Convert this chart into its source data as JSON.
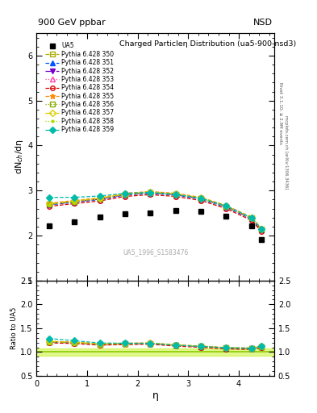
{
  "title_left": "900 GeV ppbar",
  "title_right": "NSD",
  "plot_title": "Charged Particleη Distribution",
  "plot_subtitle": "(ua5-900-nsd3)",
  "watermark": "UA5_1996_S1583476",
  "right_label1": "Rivet 3.1.10; ≥ 2.9M events",
  "right_label2": "mcplots.cern.ch [arXiv:1306.3436]",
  "xlabel": "η",
  "ylabel_main": "dN$_{ch}$/dη",
  "ylabel_ratio": "Ratio to UA5",
  "xlim": [
    0,
    4.7
  ],
  "ylim_main": [
    1.0,
    6.5
  ],
  "ylim_ratio": [
    0.5,
    2.5
  ],
  "yticks_main": [
    1,
    2,
    3,
    4,
    5,
    6
  ],
  "yticks_ratio": [
    0.5,
    1.0,
    1.5,
    2.0,
    2.5
  ],
  "ua5_x": [
    0.25,
    0.75,
    1.25,
    1.75,
    2.25,
    2.75,
    3.25,
    3.75,
    4.25,
    4.45
  ],
  "ua5_y": [
    2.22,
    2.3,
    2.42,
    2.48,
    2.5,
    2.55,
    2.53,
    2.44,
    2.22,
    1.92
  ],
  "pythia_x": [
    0.25,
    0.75,
    1.25,
    1.75,
    2.25,
    2.75,
    3.25,
    3.75,
    4.25,
    4.45
  ],
  "pythia_350_y": [
    2.7,
    2.76,
    2.82,
    2.91,
    2.95,
    2.91,
    2.82,
    2.65,
    2.38,
    2.13
  ],
  "pythia_351_y": [
    2.68,
    2.74,
    2.8,
    2.9,
    2.94,
    2.9,
    2.81,
    2.63,
    2.37,
    2.12
  ],
  "pythia_352_y": [
    2.69,
    2.75,
    2.81,
    2.91,
    2.95,
    2.91,
    2.82,
    2.64,
    2.38,
    2.13
  ],
  "pythia_353_y": [
    2.7,
    2.76,
    2.82,
    2.92,
    2.96,
    2.92,
    2.83,
    2.65,
    2.39,
    2.14
  ],
  "pythia_354_y": [
    2.65,
    2.71,
    2.77,
    2.87,
    2.91,
    2.87,
    2.78,
    2.6,
    2.34,
    2.09
  ],
  "pythia_355_y": [
    2.72,
    2.78,
    2.84,
    2.94,
    2.98,
    2.94,
    2.85,
    2.67,
    2.41,
    2.16
  ],
  "pythia_356_y": [
    2.7,
    2.76,
    2.82,
    2.92,
    2.96,
    2.92,
    2.83,
    2.65,
    2.39,
    2.14
  ],
  "pythia_357_y": [
    2.71,
    2.77,
    2.83,
    2.93,
    2.97,
    2.93,
    2.84,
    2.66,
    2.4,
    2.15
  ],
  "pythia_358_y": [
    2.69,
    2.75,
    2.81,
    2.91,
    2.95,
    2.91,
    2.82,
    2.64,
    2.38,
    2.13
  ],
  "pythia_359_y": [
    2.85,
    2.85,
    2.88,
    2.94,
    2.96,
    2.92,
    2.83,
    2.66,
    2.4,
    2.15
  ],
  "series": [
    {
      "label": "Pythia 6.428 350",
      "color": "#aaaa00",
      "ls": "--",
      "marker": "s",
      "filled": false
    },
    {
      "label": "Pythia 6.428 351",
      "color": "#0055ff",
      "ls": "--",
      "marker": "^",
      "filled": true
    },
    {
      "label": "Pythia 6.428 352",
      "color": "#7700cc",
      "ls": "-.",
      "marker": "v",
      "filled": true
    },
    {
      "label": "Pythia 6.428 353",
      "color": "#ff44aa",
      "ls": ":",
      "marker": "^",
      "filled": false
    },
    {
      "label": "Pythia 6.428 354",
      "color": "#dd0000",
      "ls": "--",
      "marker": "o",
      "filled": false
    },
    {
      "label": "Pythia 6.428 355",
      "color": "#ff8800",
      "ls": "--",
      "marker": "*",
      "filled": true
    },
    {
      "label": "Pythia 6.428 356",
      "color": "#88aa00",
      "ls": ":",
      "marker": "s",
      "filled": false
    },
    {
      "label": "Pythia 6.428 357",
      "color": "#ddcc00",
      "ls": "-.",
      "marker": "D",
      "filled": false
    },
    {
      "label": "Pythia 6.428 358",
      "color": "#aadd00",
      "ls": ":",
      "marker": ".",
      "filled": true
    },
    {
      "label": "Pythia 6.428 359",
      "color": "#00bbaa",
      "ls": "--",
      "marker": "D",
      "filled": true
    }
  ],
  "markers": [
    "s",
    "^",
    "v",
    "^",
    "o",
    "*",
    "s",
    "D",
    ".",
    "D"
  ],
  "ratio_band_color": "#bbee00",
  "ratio_band_alpha": 0.45,
  "ratio_band_lo": 0.92,
  "ratio_band_hi": 1.08,
  "bg_color": "#ffffff"
}
